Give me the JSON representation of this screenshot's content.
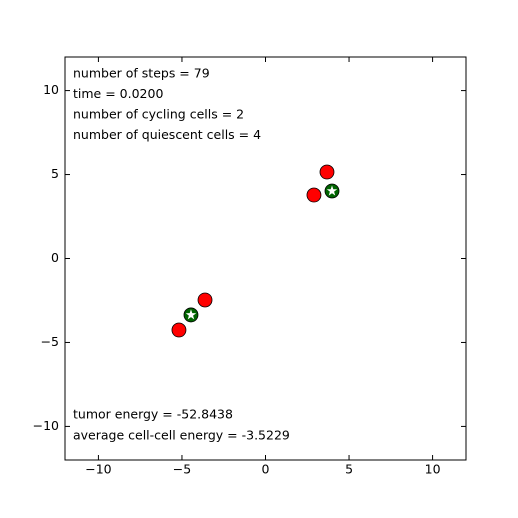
{
  "chart_data": {
    "type": "scatter",
    "annotations": {
      "top": [
        "number of steps = 79",
        "time = 0.0200",
        "number of cycling cells = 2",
        "number of quiescent cells = 4"
      ],
      "bottom": [
        "tumor energy = -52.8438",
        "average cell-cell energy = -3.5229"
      ]
    },
    "series": [
      {
        "color": "#ff0000",
        "marker": "circle",
        "x": [
          3.68,
          2.9,
          -3.62,
          -5.18
        ],
        "values": [
          5.15,
          3.78,
          -2.47,
          -4.26
        ]
      },
      {
        "color": "#006400",
        "marker": "star",
        "x": [
          3.98,
          -4.46
        ],
        "values": [
          4.02,
          -3.36
        ]
      }
    ],
    "xlim": [
      -12,
      12
    ],
    "ylim": [
      -12,
      12
    ],
    "xticks": [
      {
        "value": -10,
        "label": "−10"
      },
      {
        "value": -5,
        "label": "−5"
      },
      0,
      5,
      10
    ],
    "yticks": [
      {
        "value": -10,
        "label": "−10"
      },
      {
        "value": -5,
        "label": "−5"
      },
      0,
      5,
      10
    ],
    "grid": false
  }
}
